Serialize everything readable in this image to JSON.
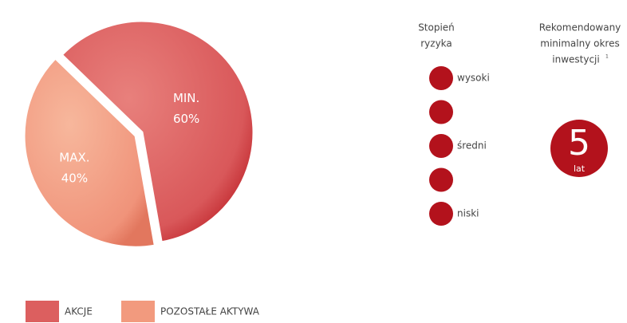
{
  "chart_data": {
    "type": "pie",
    "categories": [
      "AKCJE",
      "POZOSTAŁE AKTYWA"
    ],
    "values": [
      60,
      40
    ],
    "value_labels": [
      "60%",
      "40%"
    ],
    "slice_captions": [
      "MIN.",
      "MAX."
    ],
    "colors": [
      "#dc5f5f",
      "#f29a7e"
    ]
  },
  "risk": {
    "title": [
      "Stopień",
      "ryzyka"
    ],
    "levels": [
      "wysoki",
      null,
      "średni",
      null,
      "niski"
    ],
    "color": "#b3121c"
  },
  "horizon": {
    "title": [
      "Rekomendowany",
      "minimalny okres",
      "inwestycji"
    ],
    "footnote": "1",
    "value": "5",
    "unit": "lat",
    "color": "#b3121c"
  }
}
